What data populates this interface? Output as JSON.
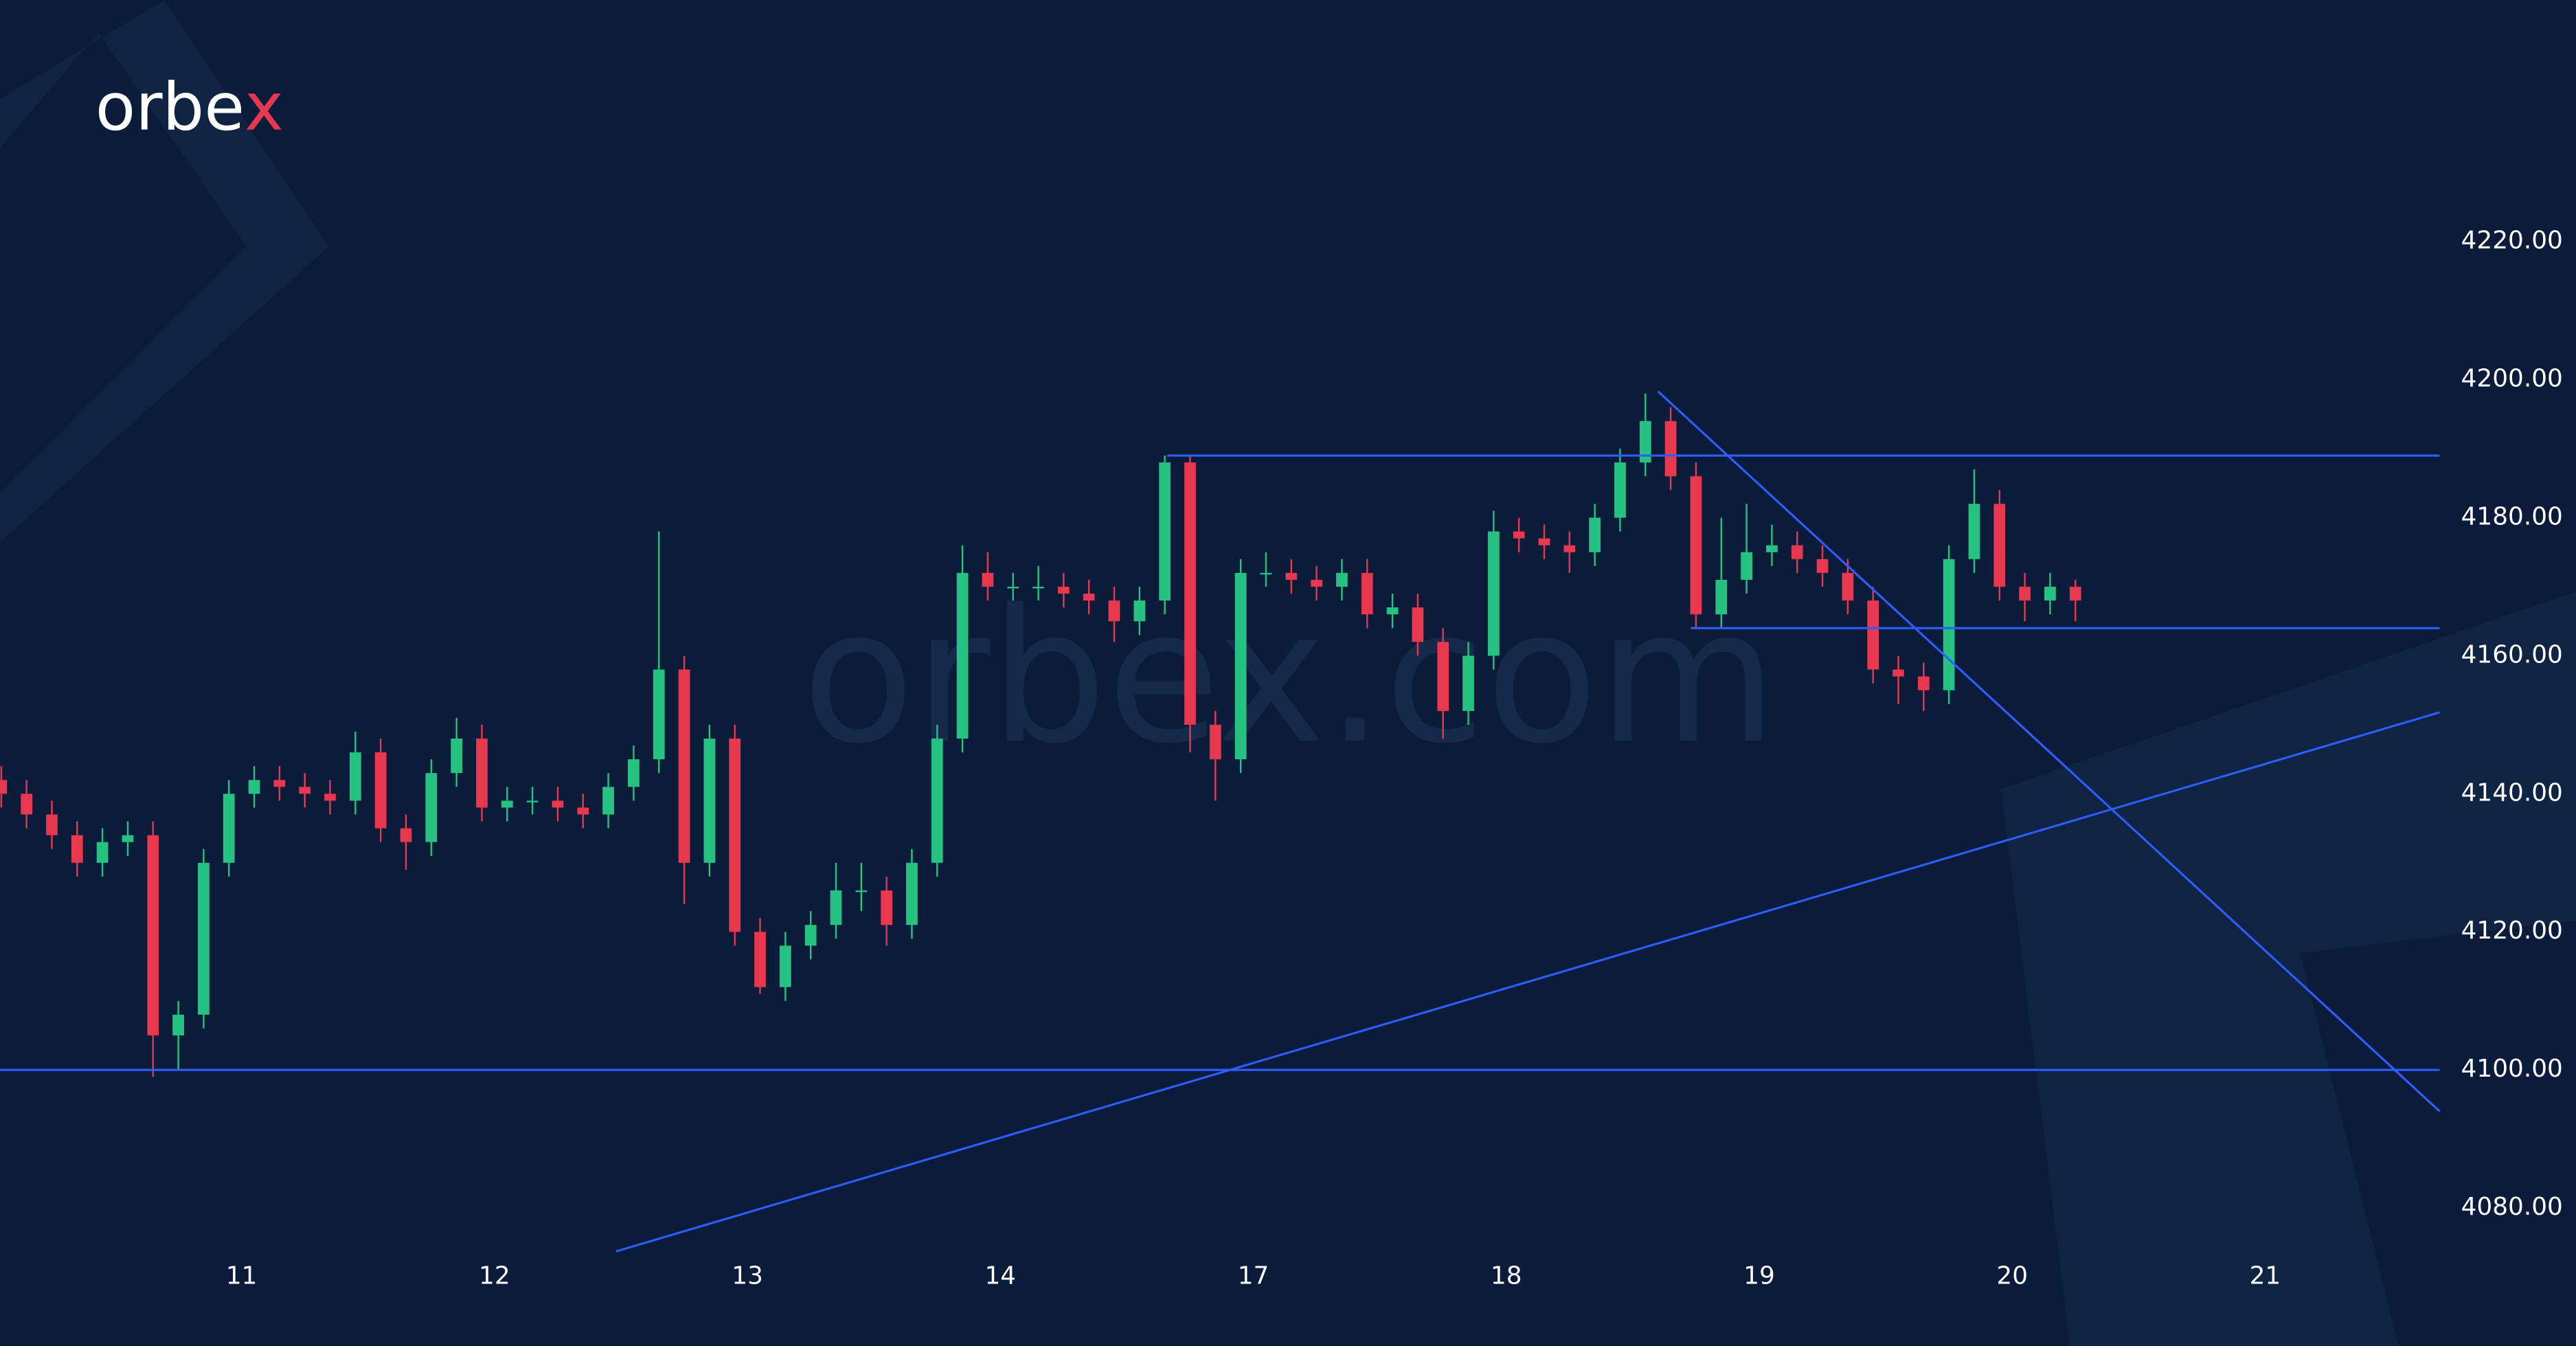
{
  "chart_data": {
    "type": "candlestick",
    "logo": {
      "parts": [
        "orbe",
        "x"
      ]
    },
    "watermark": "orbex.com",
    "up_color": "#26c281",
    "down_color": "#e8384f",
    "line_color": "#2f5cff",
    "xlim": [
      -0.955,
      8.69
    ],
    "ylim": [
      4060,
      4255
    ],
    "xticks": [
      {
        "value": 0,
        "label": "11"
      },
      {
        "value": 1,
        "label": "12"
      },
      {
        "value": 2,
        "label": "13"
      },
      {
        "value": 3,
        "label": "14"
      },
      {
        "value": 4,
        "label": "17"
      },
      {
        "value": 5,
        "label": "18"
      },
      {
        "value": 6,
        "label": "19"
      },
      {
        "value": 7,
        "label": "20"
      },
      {
        "value": 8,
        "label": "21"
      }
    ],
    "yticks": [
      {
        "value": 4080,
        "label": "4080.00"
      },
      {
        "value": 4100,
        "label": "4100.00"
      },
      {
        "value": 4120,
        "label": "4120.00"
      },
      {
        "value": 4140,
        "label": "4140.00"
      },
      {
        "value": 4160,
        "label": "4160.00"
      },
      {
        "value": 4180,
        "label": "4180.00"
      },
      {
        "value": 4200,
        "label": "4200.00"
      },
      {
        "value": 4220,
        "label": "4220.00"
      }
    ],
    "x": [
      -0.95,
      -0.85,
      -0.75,
      -0.65,
      -0.55,
      -0.45,
      -0.35,
      -0.25,
      -0.15,
      -0.05,
      0.05,
      0.15,
      0.25,
      0.35,
      0.45,
      0.55,
      0.65,
      0.75,
      0.85,
      0.95,
      1.05,
      1.15,
      1.25,
      1.35,
      1.45,
      1.55,
      1.65,
      1.75,
      1.85,
      1.95,
      2.05,
      2.15,
      2.25,
      2.35,
      2.45,
      2.55,
      2.65,
      2.75,
      2.85,
      2.95,
      3.05,
      3.15,
      3.25,
      3.35,
      3.45,
      3.55,
      3.65,
      3.75,
      3.85,
      3.95,
      4.05,
      4.15,
      4.25,
      4.35,
      4.45,
      4.55,
      4.65,
      4.75,
      4.85,
      4.95,
      5.05,
      5.15,
      5.25,
      5.35,
      5.45,
      5.55,
      5.65,
      5.75,
      5.85,
      5.95,
      6.05,
      6.15,
      6.25,
      6.35,
      6.45,
      6.55,
      6.65,
      6.75,
      6.85,
      6.95,
      7.05,
      7.15,
      7.25
    ],
    "open": [
      4142,
      4140,
      4137,
      4134,
      4130,
      4133,
      4134,
      4105,
      4108,
      4130,
      4140,
      4142,
      4141,
      4140,
      4139,
      4146,
      4135,
      4133,
      4143,
      4148,
      4138,
      4139,
      4139,
      4138,
      4137,
      4141,
      4145,
      4158,
      4130,
      4148,
      4120,
      4112,
      4118,
      4121,
      4126,
      4126,
      4121,
      4130,
      4148,
      4172,
      4170,
      4170,
      4170,
      4169,
      4168,
      4165,
      4168,
      4188,
      4150,
      4145,
      4172,
      4172,
      4171,
      4170,
      4172,
      4166,
      4167,
      4162,
      4152,
      4160,
      4178,
      4177,
      4176,
      4175,
      4180,
      4188,
      4194,
      4186,
      4166,
      4171,
      4175,
      4176,
      4174,
      4172,
      4168,
      4158,
      4157,
      4155,
      4174,
      4182,
      4170,
      4168,
      4170
    ],
    "high": [
      4144,
      4142,
      4139,
      4136,
      4135,
      4136,
      4136,
      4110,
      4132,
      4142,
      4144,
      4144,
      4143,
      4142,
      4149,
      4148,
      4137,
      4145,
      4151,
      4150,
      4141,
      4141,
      4141,
      4140,
      4143,
      4147,
      4178,
      4160,
      4150,
      4150,
      4122,
      4120,
      4123,
      4130,
      4130,
      4128,
      4132,
      4150,
      4176,
      4175,
      4172,
      4173,
      4172,
      4171,
      4170,
      4170,
      4189,
      4189,
      4152,
      4174,
      4175,
      4174,
      4173,
      4174,
      4174,
      4169,
      4169,
      4164,
      4162,
      4181,
      4180,
      4179,
      4178,
      4182,
      4190,
      4198,
      4196,
      4188,
      4180,
      4182,
      4179,
      4178,
      4176,
      4174,
      4170,
      4160,
      4159,
      4176,
      4187,
      4184,
      4172,
      4172,
      4171
    ],
    "low": [
      4138,
      4135,
      4132,
      4128,
      4128,
      4131,
      4099,
      4100,
      4106,
      4128,
      4138,
      4139,
      4138,
      4137,
      4137,
      4133,
      4129,
      4131,
      4141,
      4136,
      4136,
      4137,
      4136,
      4135,
      4135,
      4139,
      4143,
      4124,
      4128,
      4118,
      4111,
      4110,
      4116,
      4119,
      4123,
      4118,
      4119,
      4128,
      4146,
      4168,
      4168,
      4168,
      4167,
      4166,
      4162,
      4163,
      4166,
      4146,
      4139,
      4143,
      4170,
      4169,
      4168,
      4168,
      4164,
      4164,
      4160,
      4148,
      4150,
      4158,
      4175,
      4174,
      4172,
      4173,
      4178,
      4186,
      4184,
      4164,
      4164,
      4169,
      4173,
      4172,
      4170,
      4166,
      4156,
      4153,
      4152,
      4153,
      4172,
      4168,
      4165,
      4166,
      4165
    ],
    "close": [
      4140,
      4137,
      4134,
      4130,
      4133,
      4134,
      4105,
      4108,
      4130,
      4140,
      4142,
      4141,
      4140,
      4139,
      4146,
      4135,
      4133,
      4143,
      4148,
      4138,
      4139,
      4139,
      4138,
      4137,
      4141,
      4145,
      4158,
      4130,
      4148,
      4120,
      4112,
      4118,
      4121,
      4126,
      4126,
      4121,
      4130,
      4148,
      4172,
      4170,
      4170,
      4170,
      4169,
      4168,
      4165,
      4168,
      4188,
      4150,
      4145,
      4172,
      4172,
      4171,
      4170,
      4172,
      4166,
      4167,
      4162,
      4152,
      4160,
      4178,
      4177,
      4176,
      4175,
      4180,
      4188,
      4194,
      4186,
      4166,
      4171,
      4175,
      4176,
      4174,
      4172,
      4168,
      4158,
      4157,
      4155,
      4174,
      4182,
      4170,
      4168,
      4170,
      4168
    ],
    "lines": [
      {
        "x": [
          3.66,
          8.69
        ],
        "y": [
          4189,
          4189
        ]
      },
      {
        "x": [
          5.73,
          8.69
        ],
        "y": [
          4164,
          4164
        ]
      },
      {
        "x": [
          -0.955,
          8.69
        ],
        "y": [
          4100,
          4100
        ]
      },
      {
        "x": [
          1.48,
          8.69
        ],
        "y": [
          4073.7,
          4151.8
        ]
      },
      {
        "x": [
          5.6,
          8.69
        ],
        "y": [
          4198.3,
          4094
        ]
      }
    ]
  }
}
